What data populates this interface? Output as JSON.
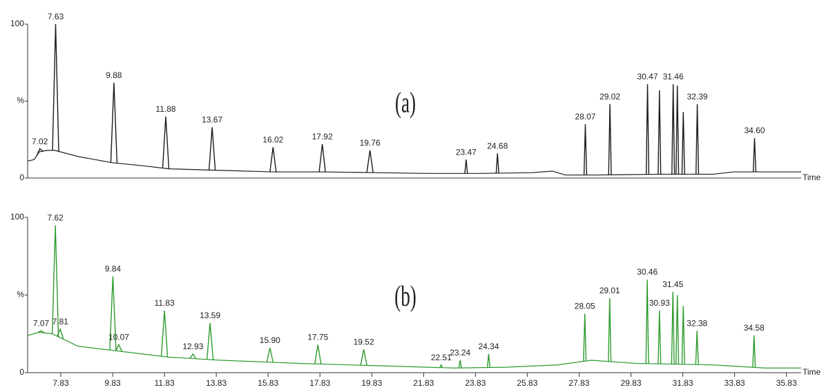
{
  "chart_data": [
    {
      "type": "chromatogram",
      "title": "(a)",
      "color": "#1a1a1a",
      "xlabel": "Time",
      "xlim": [
        6.55,
        36.4
      ],
      "ylim": [
        0,
        100
      ],
      "yticks": [
        0,
        {
          "value": 50,
          "label": "%"
        },
        100
      ],
      "trace": {
        "x": [
          6.55,
          6.8,
          7.0,
          7.3,
          7.6,
          8.5,
          9.8,
          11.0,
          12.0,
          14.0,
          16.0,
          18.0,
          20.0,
          22.0,
          24.0,
          26.0,
          26.8,
          27.3,
          28.5,
          31.0,
          33.0,
          33.8,
          35.0,
          36.4
        ],
        "values": [
          11,
          12,
          17,
          18,
          18,
          14,
          10,
          8,
          6,
          5,
          4,
          4,
          3.5,
          3,
          3,
          3.5,
          4.5,
          2,
          2,
          2.5,
          2.5,
          4,
          4,
          4
        ]
      },
      "peaks": {
        "x": [
          7.02,
          7.63,
          9.88,
          11.88,
          13.67,
          16.02,
          17.92,
          19.76,
          23.47,
          24.68,
          28.07,
          29.02,
          30.47,
          30.93,
          31.46,
          31.62,
          31.85,
          32.39,
          34.6
        ],
        "x_labels": [
          "7.02",
          "7.63",
          "9.88",
          "11.88",
          "13.67",
          "16.02",
          "17.92",
          "19.76",
          "23.47",
          "24.68",
          "28.07",
          "29.02",
          "30.47",
          null,
          "31.46",
          null,
          null,
          "32.39",
          "34.60"
        ],
        "values": [
          19,
          100,
          62,
          40,
          33,
          20,
          22,
          18,
          12,
          16,
          35,
          48,
          61,
          57,
          61,
          60,
          43,
          48,
          26
        ]
      }
    },
    {
      "type": "chromatogram",
      "title": "(b)",
      "color": "#2e9a2e",
      "xlabel": "Time",
      "xlim": [
        6.55,
        36.4
      ],
      "ylim": [
        0,
        100
      ],
      "yticks": [
        0,
        {
          "value": 50,
          "label": "%"
        },
        100
      ],
      "xticks": [
        7.83,
        9.83,
        11.83,
        13.83,
        15.83,
        17.83,
        19.83,
        21.83,
        23.83,
        25.83,
        27.83,
        29.83,
        31.83,
        33.83,
        35.83
      ],
      "trace": {
        "x": [
          6.55,
          7.0,
          7.5,
          8.5,
          10.5,
          12.0,
          14.0,
          17.0,
          21.0,
          23.0,
          25.0,
          27.0,
          28.3,
          30.0,
          33.0,
          35.0,
          36.4
        ],
        "values": [
          24,
          26,
          25,
          17,
          13,
          10,
          8,
          6,
          4,
          3,
          3.5,
          5,
          8,
          6,
          5,
          3,
          3
        ]
      },
      "peaks": {
        "x": [
          7.07,
          7.62,
          7.81,
          9.84,
          10.07,
          11.83,
          12.93,
          13.59,
          15.9,
          17.75,
          19.52,
          22.51,
          23.24,
          24.34,
          28.05,
          29.01,
          30.46,
          30.93,
          31.45,
          31.62,
          31.85,
          32.38,
          34.58
        ],
        "x_labels": [
          "7.07",
          "7.62",
          "7.81",
          "9.84",
          "10.07",
          "11.83",
          "12.93",
          "13.59",
          "15.90",
          "17.75",
          "19.52",
          "22.51",
          "23.24",
          "24.34",
          "28.05",
          "29.01",
          "30.46",
          "30.93",
          "31.45",
          null,
          null,
          "32.38",
          "34.58"
        ],
        "values": [
          27,
          95,
          28,
          62,
          18,
          40,
          12,
          32,
          16,
          18,
          15,
          5,
          8,
          12,
          38,
          48,
          60,
          40,
          52,
          50,
          43,
          27,
          24
        ]
      }
    }
  ]
}
